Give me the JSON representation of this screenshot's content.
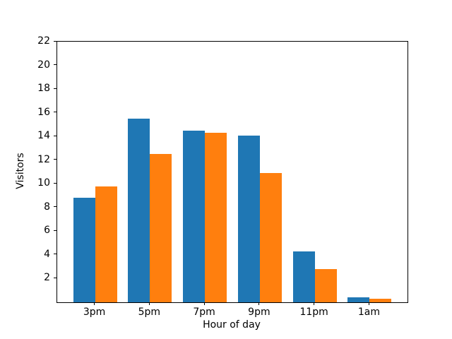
{
  "chart_data": {
    "type": "bar",
    "title": "",
    "xlabel": "Hour of day",
    "ylabel": "Visitors",
    "categories": [
      "3pm",
      "5pm",
      "7pm",
      "9pm",
      "11pm",
      "1am"
    ],
    "series": [
      {
        "name": "blue-series",
        "color": "#1f77b4",
        "values": [
          8.8,
          15.5,
          14.5,
          14.1,
          4.3,
          0.4
        ]
      },
      {
        "name": "orange-series",
        "color": "#ff7f0e",
        "values": [
          9.8,
          12.5,
          14.3,
          10.9,
          2.8,
          0.3
        ]
      }
    ],
    "ylim": [
      0,
      22
    ],
    "yticks": [
      2,
      4,
      6,
      8,
      10,
      12,
      14,
      16,
      18,
      20,
      22
    ],
    "grid": false,
    "legend": "none",
    "background_color": "#ffffff",
    "axis_color": "#000000"
  }
}
